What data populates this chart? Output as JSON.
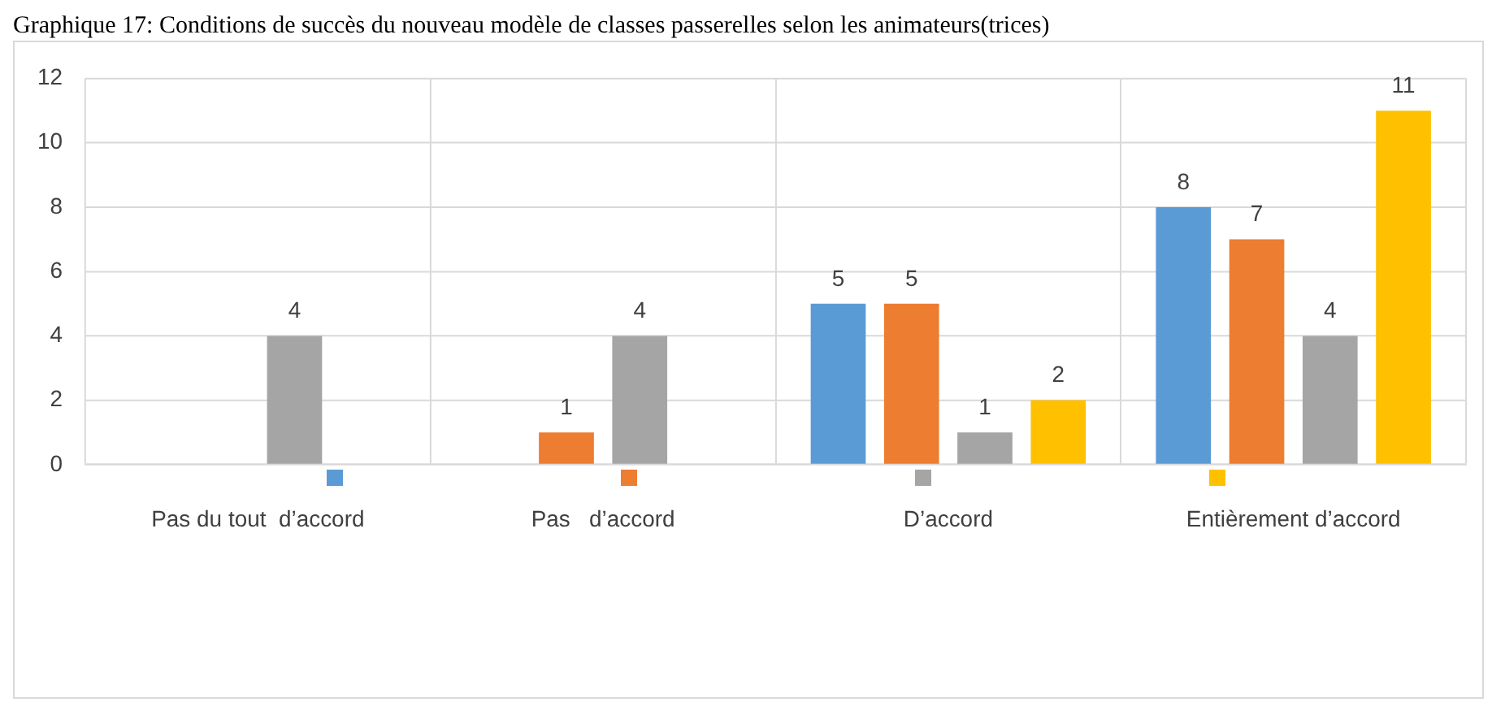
{
  "chart_data": {
    "type": "bar",
    "title": "Graphique 17: Conditions de succès du nouveau modèle de classes passerelles selon les animateurs(trices)",
    "categories": [
      "Pas du tout  d’accord",
      "Pas   d’accord",
      "D’accord",
      "Entièrement d’accord"
    ],
    "series": [
      {
        "color": "#5b9bd5",
        "values": [
          null,
          null,
          5,
          8
        ]
      },
      {
        "color": "#ed7d31",
        "values": [
          null,
          1,
          5,
          7
        ]
      },
      {
        "color": "#a5a5a5",
        "values": [
          4,
          4,
          1,
          4
        ]
      },
      {
        "color": "#ffc000",
        "values": [
          null,
          null,
          2,
          11
        ]
      }
    ],
    "ylim": [
      0,
      12
    ],
    "yticks": [
      0,
      2,
      4,
      6,
      8,
      10,
      12
    ],
    "grid": true,
    "data_labels": true
  }
}
